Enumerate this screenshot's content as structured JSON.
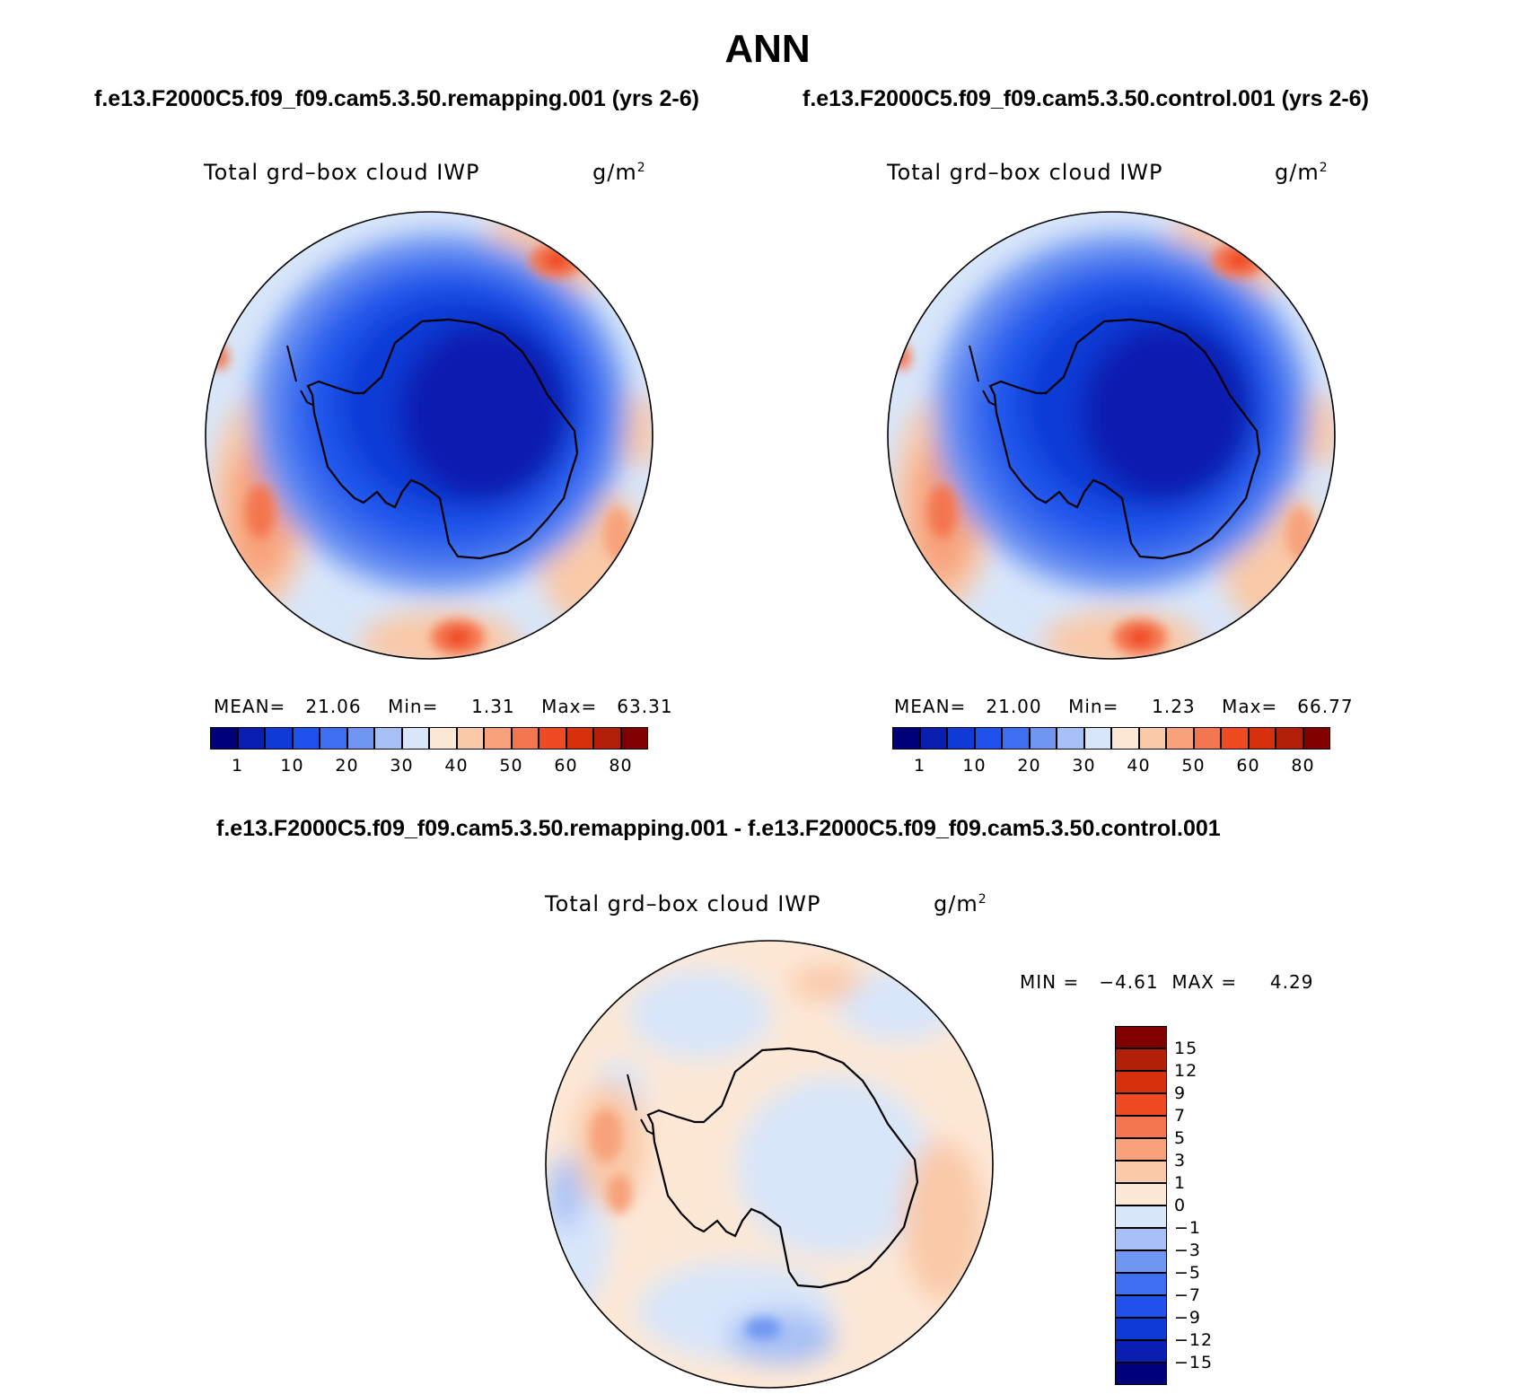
{
  "title": "ANN",
  "panels": {
    "left": {
      "case": "f.e13.F2000C5.f09_f09.cam5.3.50.remapping.001 (yrs 2-6)",
      "variable": "Total grd–box cloud IWP",
      "units": "g/m",
      "units_sup": "2",
      "mean_label": "MEAN=",
      "mean": "21.06",
      "min_label": "Min=",
      "min": "1.31",
      "max_label": "Max=",
      "max": "63.31"
    },
    "right": {
      "case": "f.e13.F2000C5.f09_f09.cam5.3.50.control.001 (yrs 2-6)",
      "variable": "Total grd–box cloud IWP",
      "units": "g/m",
      "units_sup": "2",
      "mean_label": "MEAN=",
      "mean": "21.00",
      "min_label": "Min=",
      "min": "1.23",
      "max_label": "Max=",
      "max": "66.77"
    },
    "diff": {
      "case": "f.e13.F2000C5.f09_f09.cam5.3.50.remapping.001 - f.e13.F2000C5.f09_f09.cam5.3.50.control.001",
      "variable": "Total grd–box cloud IWP",
      "units": "g/m",
      "units_sup": "2",
      "min_label": "MIN =",
      "min": "−4.61",
      "max_label": "MAX =",
      "max": "4.29"
    }
  },
  "colorbars": {
    "field": {
      "colors": [
        "#00007a",
        "#0a1fb0",
        "#0f3ad6",
        "#1f52ea",
        "#3d6ff0",
        "#6f96f2",
        "#a7c0f6",
        "#d8e6fa",
        "#fde8d6",
        "#f9c9a8",
        "#f7a27a",
        "#f47650",
        "#ef4a22",
        "#d6300d",
        "#b3200a",
        "#800000"
      ],
      "ticks": [
        "1",
        "10",
        "20",
        "30",
        "40",
        "50",
        "60",
        "80"
      ]
    },
    "diff": {
      "colors": [
        "#800000",
        "#b3200a",
        "#d6300d",
        "#ef4a22",
        "#f47650",
        "#f7a27a",
        "#f9c9a8",
        "#fde8d6",
        "#d8e6fa",
        "#a7c0f6",
        "#6f96f2",
        "#3d6ff0",
        "#1f52ea",
        "#0f3ad6",
        "#0a1fb0",
        "#00007a"
      ],
      "ticks": [
        "15",
        "12",
        "9",
        "7",
        "5",
        "3",
        "1",
        "0",
        "−1",
        "−3",
        "−5",
        "−7",
        "−9",
        "−12",
        "−15"
      ]
    }
  }
}
